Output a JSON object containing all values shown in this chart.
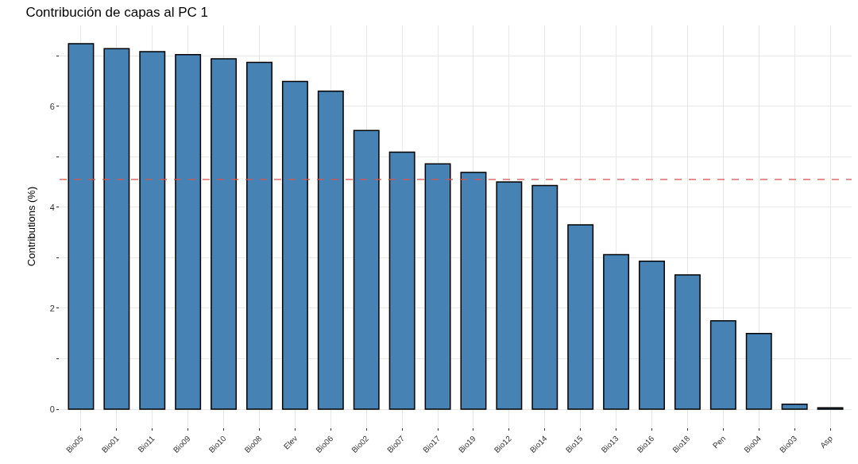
{
  "chart_data": {
    "type": "bar",
    "title": "Contribución de capas al PC 1",
    "ylabel": "Contributions (%)",
    "categories": [
      "Bio05",
      "Bio01",
      "Bio11",
      "Bio09",
      "Bio10",
      "Bio08",
      "Elev",
      "Bio06",
      "Bio02",
      "Bio07",
      "Bio17",
      "Bio19",
      "Bio12",
      "Bio14",
      "Bio15",
      "Bio13",
      "Bio16",
      "Bio18",
      "Pen",
      "Bio04",
      "Bio03",
      "Asp"
    ],
    "values": [
      7.24,
      7.14,
      7.08,
      7.02,
      6.94,
      6.87,
      6.49,
      6.3,
      5.52,
      5.09,
      4.86,
      4.69,
      4.5,
      4.43,
      3.65,
      3.06,
      2.93,
      2.66,
      1.75,
      1.5,
      0.1,
      0.03
    ],
    "color": "#4682b4",
    "ylim": [
      -0.36,
      7.6
    ],
    "yticks": [
      0,
      {
        "value": 1,
        "label": null
      },
      2,
      {
        "value": 3,
        "label": null
      },
      4,
      {
        "value": 5,
        "label": null
      },
      6,
      {
        "value": 7,
        "label": null
      }
    ],
    "ref_lines": [
      {
        "axis": "y",
        "value": 4.55,
        "color": "#d9534f",
        "line_style": "dashed"
      }
    ],
    "grid": true
  }
}
